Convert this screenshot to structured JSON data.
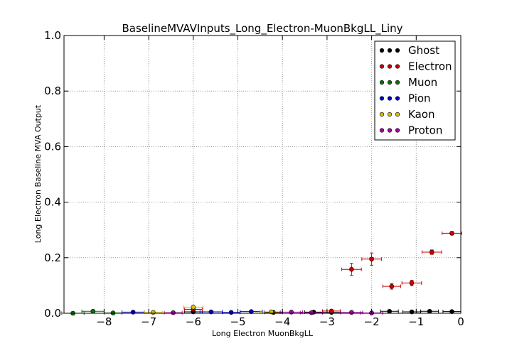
{
  "chart_data": {
    "type": "scatter",
    "title": "BaselineMVAVInputs_Long_Electron-MuonBkgLL_Liny",
    "xlabel": "Long Electron MuonBkgLL",
    "ylabel": "Long Electron Baseline MVA Output",
    "xlim": [
      -8.9,
      0
    ],
    "ylim": [
      0,
      1.0
    ],
    "xticks": [
      -8,
      -7,
      -6,
      -5,
      -4,
      -3,
      -2,
      -1,
      0
    ],
    "xtick_labels": [
      "−8",
      "−7",
      "−6",
      "−5",
      "−4",
      "−3",
      "−2",
      "−1",
      "0"
    ],
    "yticks": [
      0.0,
      0.2,
      0.4,
      0.6,
      0.8,
      1.0
    ],
    "ytick_labels": [
      "0.0",
      "0.2",
      "0.4",
      "0.6",
      "0.8",
      "1.0"
    ],
    "grid": true,
    "legend_position": "top-right",
    "series": [
      {
        "name": "Ghost",
        "color": "#000000",
        "points": [
          {
            "x": -6.0,
            "y": 0.005,
            "xerr": 0.2,
            "yerr": 0.002
          },
          {
            "x": -4.2,
            "y": 0.003,
            "xerr": 0.2,
            "yerr": 0.002
          },
          {
            "x": -3.3,
            "y": 0.004,
            "xerr": 0.2,
            "yerr": 0.002
          },
          {
            "x": -2.9,
            "y": 0.003,
            "xerr": 0.2,
            "yerr": 0.002
          },
          {
            "x": -1.6,
            "y": 0.007,
            "xerr": 0.2,
            "yerr": 0.002
          },
          {
            "x": -1.1,
            "y": 0.005,
            "xerr": 0.2,
            "yerr": 0.002
          },
          {
            "x": -0.7,
            "y": 0.007,
            "xerr": 0.2,
            "yerr": 0.002
          },
          {
            "x": -0.2,
            "y": 0.006,
            "xerr": 0.2,
            "yerr": 0.002
          }
        ]
      },
      {
        "name": "Electron",
        "color": "#cc0000",
        "points": [
          {
            "x": -6.0,
            "y": 0.014,
            "xerr": 0.2,
            "yerr": 0.004
          },
          {
            "x": -2.9,
            "y": 0.008,
            "xerr": 0.2,
            "yerr": 0.003
          },
          {
            "x": -2.45,
            "y": 0.158,
            "xerr": 0.22,
            "yerr": 0.022
          },
          {
            "x": -2.0,
            "y": 0.195,
            "xerr": 0.22,
            "yerr": 0.022
          },
          {
            "x": -1.55,
            "y": 0.097,
            "xerr": 0.2,
            "yerr": 0.01
          },
          {
            "x": -1.1,
            "y": 0.109,
            "xerr": 0.22,
            "yerr": 0.01
          },
          {
            "x": -0.65,
            "y": 0.22,
            "xerr": 0.22,
            "yerr": 0.008
          },
          {
            "x": -0.2,
            "y": 0.288,
            "xerr": 0.22,
            "yerr": 0.006
          }
        ]
      },
      {
        "name": "Muon",
        "color": "#007700",
        "points": [
          {
            "x": -8.7,
            "y": 0.0,
            "xerr": 0.25,
            "yerr": 0.002
          },
          {
            "x": -8.25,
            "y": 0.007,
            "xerr": 0.25,
            "yerr": 0.002
          },
          {
            "x": -7.8,
            "y": 0.001,
            "xerr": 0.2,
            "yerr": 0.001
          }
        ]
      },
      {
        "name": "Pion",
        "color": "#0000cc",
        "points": [
          {
            "x": -7.35,
            "y": 0.004,
            "xerr": 0.25,
            "yerr": 0.002
          },
          {
            "x": -5.6,
            "y": 0.005,
            "xerr": 0.25,
            "yerr": 0.002
          },
          {
            "x": -5.15,
            "y": 0.003,
            "xerr": 0.2,
            "yerr": 0.002
          },
          {
            "x": -4.7,
            "y": 0.006,
            "xerr": 0.25,
            "yerr": 0.002
          }
        ]
      },
      {
        "name": "Kaon",
        "color": "#ddbb00",
        "points": [
          {
            "x": -6.9,
            "y": 0.003,
            "xerr": 0.2,
            "yerr": 0.002
          },
          {
            "x": -6.0,
            "y": 0.022,
            "xerr": 0.22,
            "yerr": 0.005
          },
          {
            "x": -4.25,
            "y": 0.005,
            "xerr": 0.25,
            "yerr": 0.002
          }
        ]
      },
      {
        "name": "Proton",
        "color": "#aa00aa",
        "points": [
          {
            "x": -6.45,
            "y": 0.002,
            "xerr": 0.2,
            "yerr": 0.001
          },
          {
            "x": -3.8,
            "y": 0.004,
            "xerr": 0.25,
            "yerr": 0.002
          },
          {
            "x": -3.35,
            "y": 0.002,
            "xerr": 0.25,
            "yerr": 0.001
          },
          {
            "x": -2.45,
            "y": 0.003,
            "xerr": 0.25,
            "yerr": 0.001
          },
          {
            "x": -2.0,
            "y": 0.001,
            "xerr": 0.25,
            "yerr": 0.001
          }
        ]
      }
    ]
  }
}
